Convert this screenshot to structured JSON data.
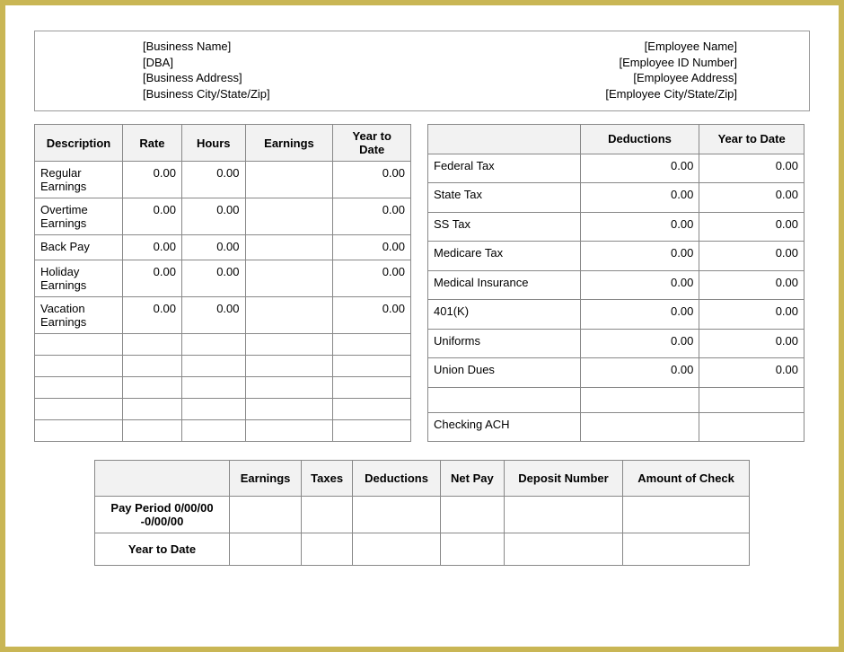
{
  "header": {
    "business": {
      "name": "[Business Name]",
      "dba": "[DBA]",
      "address": "[Business Address]",
      "city_state_zip": "[Business City/State/Zip]"
    },
    "employee": {
      "name": "[Employee Name]",
      "id": "[Employee ID Number]",
      "address": "[Employee Address]",
      "city_state_zip": "[Employee City/State/Zip]"
    }
  },
  "earnings": {
    "columns": {
      "description": "Description",
      "rate": "Rate",
      "hours": "Hours",
      "earnings": "Earnings",
      "ytd": "Year to Date"
    },
    "rows": {
      "r0": {
        "desc": "Regular Earnings",
        "rate": "0.00",
        "hours": "0.00",
        "earn": "",
        "ytd": "0.00"
      },
      "r1": {
        "desc": "Overtime Earnings",
        "rate": "0.00",
        "hours": "0.00",
        "earn": "",
        "ytd": "0.00"
      },
      "r2": {
        "desc": "Back Pay",
        "rate": "0.00",
        "hours": "0.00",
        "earn": "",
        "ytd": "0.00"
      },
      "r3": {
        "desc": "Holiday Earnings",
        "rate": "0.00",
        "hours": "0.00",
        "earn": "",
        "ytd": "0.00"
      },
      "r4": {
        "desc": "Vacation Earnings",
        "rate": "0.00",
        "hours": "0.00",
        "earn": "",
        "ytd": "0.00"
      }
    }
  },
  "deductions": {
    "columns": {
      "blank": "",
      "deductions": "Deductions",
      "ytd": "Year to Date"
    },
    "rows": {
      "r0": {
        "desc": "Federal Tax",
        "ded": "0.00",
        "ytd": "0.00"
      },
      "r1": {
        "desc": "State Tax",
        "ded": "0.00",
        "ytd": "0.00"
      },
      "r2": {
        "desc": "SS Tax",
        "ded": "0.00",
        "ytd": "0.00"
      },
      "r3": {
        "desc": "Medicare Tax",
        "ded": "0.00",
        "ytd": "0.00"
      },
      "r4": {
        "desc": "Medical Insurance",
        "ded": "0.00",
        "ytd": "0.00"
      },
      "r5": {
        "desc": "401(K)",
        "ded": "0.00",
        "ytd": "0.00"
      },
      "r6": {
        "desc": "Uniforms",
        "ded": "0.00",
        "ytd": "0.00"
      },
      "r7": {
        "desc": "Union Dues",
        "ded": "0.00",
        "ytd": "0.00"
      },
      "r8": {
        "desc": "",
        "ded": "",
        "ytd": ""
      },
      "r9": {
        "desc": "Checking ACH",
        "ded": "",
        "ytd": ""
      }
    }
  },
  "summary": {
    "columns": {
      "blank": "",
      "earnings": "Earnings",
      "taxes": "Taxes",
      "deductions": "Deductions",
      "netpay": "Net Pay",
      "deposit": "Deposit Number",
      "amount": "Amount of Check"
    },
    "rows": {
      "r0": {
        "label": "Pay Period 0/00/00 -0/00/00"
      },
      "r1": {
        "label": "Year to Date"
      }
    }
  }
}
